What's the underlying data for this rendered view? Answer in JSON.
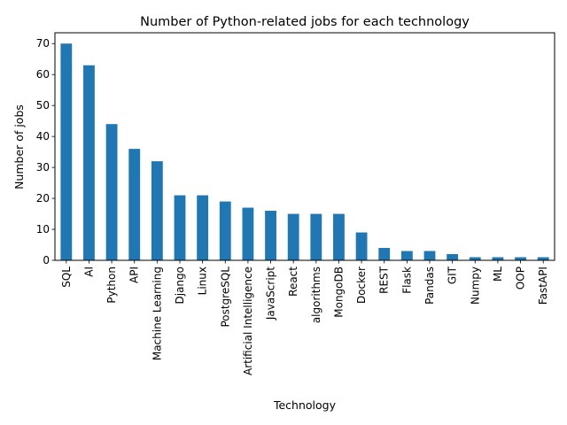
{
  "chart_data": {
    "type": "bar",
    "title": "Number of Python-related jobs for each technology",
    "xlabel": "Technology",
    "ylabel": "Number of jobs",
    "categories": [
      "SQL",
      "AI",
      "Python",
      "API",
      "Machine Learning",
      "Django",
      "Linux",
      "PostgreSQL",
      "Artificial Intelligence",
      "JavaScript",
      "React",
      "algorithms",
      "MongoDB",
      "Docker",
      "REST",
      "Flask",
      "Pandas",
      "GIT",
      "Numpy",
      "ML",
      "OOP",
      "FastAPI"
    ],
    "values": [
      70,
      63,
      44,
      36,
      32,
      21,
      21,
      19,
      17,
      16,
      15,
      15,
      15,
      9,
      4,
      3,
      3,
      2,
      1,
      1,
      1,
      1
    ],
    "ylim": [
      0,
      73.5
    ],
    "yticks": [
      0,
      10,
      20,
      30,
      40,
      50,
      60,
      70
    ],
    "grid": false,
    "legend": "none",
    "bar_color": "#1f77b4"
  }
}
